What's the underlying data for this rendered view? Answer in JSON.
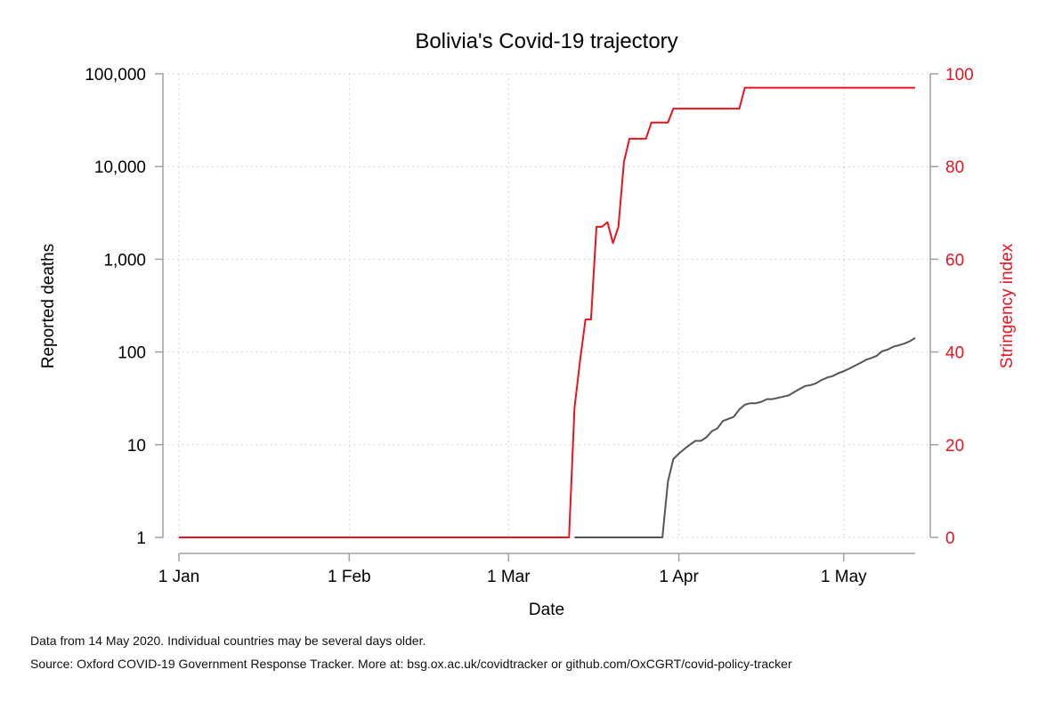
{
  "chart_data": {
    "type": "line",
    "title": "Bolivia's Covid-19 trajectory",
    "xlabel": "Date",
    "ylabel_left": "Reported deaths",
    "ylabel_right": "Stringency index",
    "x_ticks": [
      {
        "date": "2020-01-01",
        "label": "1 Jan"
      },
      {
        "date": "2020-02-01",
        "label": "1 Feb"
      },
      {
        "date": "2020-03-01",
        "label": "1 Mar"
      },
      {
        "date": "2020-04-01",
        "label": "1 Apr"
      },
      {
        "date": "2020-05-01",
        "label": "1 May"
      }
    ],
    "xlim": [
      "2019-12-31",
      "2020-05-14"
    ],
    "y_left": {
      "scale": "log",
      "ylim": [
        1,
        100000
      ],
      "ticks": [
        {
          "value": 1,
          "label": "1"
        },
        {
          "value": 10,
          "label": "10"
        },
        {
          "value": 100,
          "label": "100"
        },
        {
          "value": 1000,
          "label": "1,000"
        },
        {
          "value": 10000,
          "label": "10,000"
        },
        {
          "value": 100000,
          "label": "100,000"
        }
      ]
    },
    "y_right": {
      "scale": "linear",
      "ylim": [
        0,
        100
      ],
      "ticks": [
        {
          "value": 0,
          "label": "0"
        },
        {
          "value": 20,
          "label": "20"
        },
        {
          "value": 40,
          "label": "40"
        },
        {
          "value": 60,
          "label": "60"
        },
        {
          "value": 80,
          "label": "80"
        },
        {
          "value": 100,
          "label": "100"
        }
      ]
    },
    "grid": true,
    "series": [
      {
        "axis": "right",
        "color": "#e8141f",
        "points": [
          [
            "2020-01-01",
            0
          ],
          [
            "2020-03-12",
            0
          ],
          [
            "2020-03-13",
            28
          ],
          [
            "2020-03-14",
            38
          ],
          [
            "2020-03-15",
            47
          ],
          [
            "2020-03-16",
            47
          ],
          [
            "2020-03-17",
            67
          ],
          [
            "2020-03-18",
            67
          ],
          [
            "2020-03-19",
            68
          ],
          [
            "2020-03-20",
            63.5
          ],
          [
            "2020-03-21",
            67
          ],
          [
            "2020-03-22",
            81
          ],
          [
            "2020-03-23",
            86
          ],
          [
            "2020-03-24",
            86
          ],
          [
            "2020-03-25",
            86
          ],
          [
            "2020-03-26",
            86
          ],
          [
            "2020-03-27",
            89.5
          ],
          [
            "2020-03-28",
            89.5
          ],
          [
            "2020-03-29",
            89.5
          ],
          [
            "2020-03-30",
            89.5
          ],
          [
            "2020-03-31",
            92.5
          ],
          [
            "2020-04-12",
            92.5
          ],
          [
            "2020-04-13",
            97
          ],
          [
            "2020-05-14",
            97
          ]
        ]
      },
      {
        "axis": "left",
        "color": "#555555",
        "points": [
          [
            "2020-03-13",
            1
          ],
          [
            "2020-03-29",
            1
          ],
          [
            "2020-03-30",
            4
          ],
          [
            "2020-03-31",
            7
          ],
          [
            "2020-04-01",
            8
          ],
          [
            "2020-04-02",
            9
          ],
          [
            "2020-04-03",
            10
          ],
          [
            "2020-04-04",
            11
          ],
          [
            "2020-04-05",
            11
          ],
          [
            "2020-04-06",
            12
          ],
          [
            "2020-04-07",
            14
          ],
          [
            "2020-04-08",
            15
          ],
          [
            "2020-04-09",
            18
          ],
          [
            "2020-04-10",
            19
          ],
          [
            "2020-04-11",
            20
          ],
          [
            "2020-04-12",
            24
          ],
          [
            "2020-04-13",
            27
          ],
          [
            "2020-04-14",
            28
          ],
          [
            "2020-04-15",
            28
          ],
          [
            "2020-04-16",
            29
          ],
          [
            "2020-04-17",
            31
          ],
          [
            "2020-04-18",
            31
          ],
          [
            "2020-04-19",
            32
          ],
          [
            "2020-04-20",
            33
          ],
          [
            "2020-04-21",
            34
          ],
          [
            "2020-04-22",
            37
          ],
          [
            "2020-04-23",
            40
          ],
          [
            "2020-04-24",
            43
          ],
          [
            "2020-04-25",
            44
          ],
          [
            "2020-04-26",
            46
          ],
          [
            "2020-04-27",
            50
          ],
          [
            "2020-04-28",
            53
          ],
          [
            "2020-04-29",
            55
          ],
          [
            "2020-04-30",
            59
          ],
          [
            "2020-05-01",
            62
          ],
          [
            "2020-05-02",
            66
          ],
          [
            "2020-05-03",
            71
          ],
          [
            "2020-05-04",
            76
          ],
          [
            "2020-05-05",
            82
          ],
          [
            "2020-05-06",
            86
          ],
          [
            "2020-05-07",
            91
          ],
          [
            "2020-05-08",
            102
          ],
          [
            "2020-05-09",
            106
          ],
          [
            "2020-05-10",
            114
          ],
          [
            "2020-05-11",
            118
          ],
          [
            "2020-05-12",
            123
          ],
          [
            "2020-05-13",
            130
          ],
          [
            "2020-05-14",
            142
          ]
        ]
      }
    ]
  },
  "notes": {
    "data_note": "Data from 14 May 2020. Individual countries may be several days older.",
    "source_note": "Source: Oxford COVID-19 Government Response Tracker. More at: bsg.ox.ac.uk/covidtracker or github.com/OxCGRT/covid-policy-tracker"
  }
}
